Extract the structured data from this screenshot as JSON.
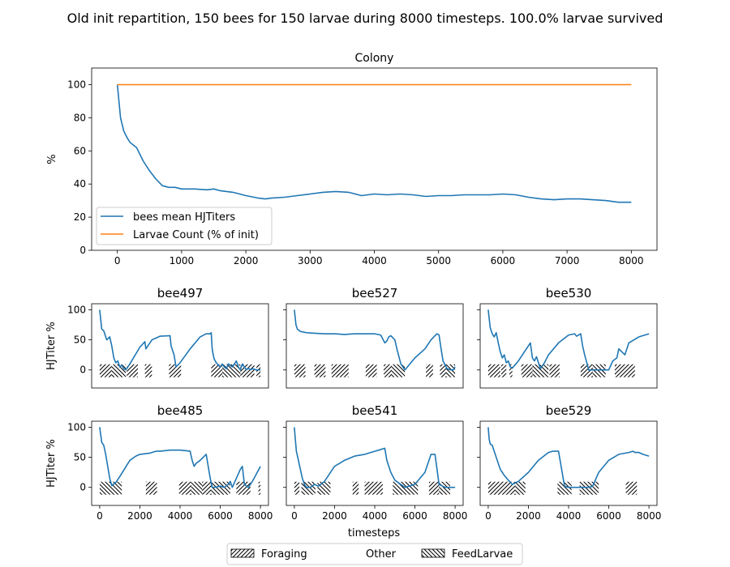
{
  "figure": {
    "suptitle": "Old init repartition, 150 bees for 150 larvae during 8000 timesteps. 100.0% larvae survived",
    "shared_xlabel": "timesteps",
    "legend": [
      {
        "label": "Foraging",
        "hatch": "forward"
      },
      {
        "label": "Other",
        "hatch": "none"
      },
      {
        "label": "FeedLarvae",
        "hatch": "backward"
      }
    ]
  },
  "colors": {
    "blue": "#1f77b4",
    "orange": "#ff7f0e"
  },
  "chart_data": [
    {
      "type": "line",
      "title": "Colony",
      "ylabel": "%",
      "xlabel": "",
      "xlim": [
        -400,
        8400
      ],
      "ylim": [
        0,
        110
      ],
      "xticks": [
        0,
        1000,
        2000,
        3000,
        4000,
        5000,
        6000,
        7000,
        8000
      ],
      "yticks": [
        0,
        20,
        40,
        60,
        80,
        100
      ],
      "legend_position": "lower-left",
      "series": [
        {
          "name": "bees mean HJTiters",
          "color": "#1f77b4",
          "x": [
            0,
            50,
            100,
            150,
            200,
            300,
            400,
            500,
            600,
            700,
            800,
            900,
            1000,
            1200,
            1400,
            1500,
            1600,
            1800,
            2000,
            2200,
            2300,
            2400,
            2600,
            2800,
            3000,
            3200,
            3400,
            3600,
            3800,
            4000,
            4200,
            4400,
            4600,
            4800,
            5000,
            5200,
            5400,
            5600,
            5800,
            6000,
            6200,
            6400,
            6600,
            6800,
            7000,
            7200,
            7400,
            7600,
            7800,
            8000
          ],
          "y": [
            100,
            80,
            72,
            68,
            65,
            62,
            54,
            48,
            43,
            39,
            38,
            38,
            37,
            37,
            36.5,
            37,
            36,
            35,
            33,
            31.5,
            31,
            31.5,
            32,
            33,
            34,
            35,
            35.5,
            35,
            33,
            34,
            33.5,
            34,
            33.5,
            32.5,
            33,
            33,
            33.5,
            33.5,
            33.5,
            34,
            33.5,
            32,
            31,
            30.5,
            31,
            31,
            30.5,
            30,
            29,
            29
          ]
        },
        {
          "name": "Larvae Count (% of init)",
          "color": "#ff7f0e",
          "x": [
            0,
            8000
          ],
          "y": [
            100,
            100
          ]
        }
      ]
    },
    {
      "type": "line",
      "title": "bee497",
      "ylabel": "HJTiter %",
      "xlim": [
        -400,
        8400
      ],
      "ylim": [
        -30,
        110
      ],
      "yticks": [
        0,
        50,
        100
      ],
      "x": [
        0,
        100,
        200,
        350,
        500,
        600,
        700,
        800,
        900,
        1000,
        1100,
        1200,
        1300,
        1500,
        2000,
        2250,
        2300,
        2600,
        3000,
        3500,
        3550,
        3700,
        3800,
        4000,
        4500,
        5000,
        5300,
        5500,
        5550,
        5600,
        5650,
        5700,
        5800,
        5900,
        6000,
        6100,
        6200,
        6300,
        6400,
        6600,
        6800,
        6900,
        7000,
        7100,
        7200,
        7300,
        7400,
        7500,
        7600,
        7800,
        8000
      ],
      "y": [
        100,
        68,
        65,
        50,
        55,
        40,
        20,
        12,
        15,
        5,
        8,
        2,
        0,
        10,
        38,
        47,
        35,
        50,
        56,
        57,
        40,
        25,
        5,
        12,
        35,
        55,
        60,
        60,
        62,
        35,
        25,
        18,
        12,
        8,
        5,
        10,
        5,
        2,
        10,
        5,
        15,
        5,
        0,
        10,
        5,
        0,
        3,
        0,
        2,
        0,
        0
      ],
      "activities": [
        {
          "kind": "forward",
          "start": 0,
          "end": 600
        },
        {
          "kind": "backward",
          "start": 600,
          "end": 1300
        },
        {
          "kind": "forward",
          "start": 1350,
          "end": 1900
        },
        {
          "kind": "forward",
          "start": 2250,
          "end": 2600
        },
        {
          "kind": "forward",
          "start": 3450,
          "end": 4050
        },
        {
          "kind": "forward",
          "start": 5550,
          "end": 6100
        },
        {
          "kind": "backward",
          "start": 6100,
          "end": 7000
        },
        {
          "kind": "forward",
          "start": 7000,
          "end": 7700
        },
        {
          "kind": "forward",
          "start": 7800,
          "end": 8000
        }
      ]
    },
    {
      "type": "line",
      "title": "bee527",
      "ylabel": "",
      "xlim": [
        -400,
        8400
      ],
      "ylim": [
        -30,
        110
      ],
      "yticks": [
        0,
        50,
        100
      ],
      "x": [
        0,
        80,
        150,
        300,
        600,
        1000,
        1500,
        2000,
        2500,
        3000,
        3500,
        4000,
        4300,
        4500,
        4600,
        4700,
        4800,
        5000,
        5100,
        5300,
        5500,
        6000,
        6500,
        6800,
        7000,
        7100,
        7200,
        7300,
        7400,
        7600,
        7800,
        7900,
        8000
      ],
      "y": [
        100,
        75,
        68,
        64,
        62,
        61,
        60,
        60,
        59,
        60,
        60,
        60,
        58,
        45,
        48,
        55,
        57,
        50,
        35,
        10,
        0,
        20,
        35,
        50,
        57,
        60,
        58,
        35,
        15,
        2,
        0,
        0,
        5
      ],
      "activities": [
        {
          "kind": "forward",
          "start": 0,
          "end": 550
        },
        {
          "kind": "forward",
          "start": 1000,
          "end": 1550
        },
        {
          "kind": "forward",
          "start": 1850,
          "end": 2700
        },
        {
          "kind": "forward",
          "start": 3550,
          "end": 4100
        },
        {
          "kind": "forward",
          "start": 4450,
          "end": 4850
        },
        {
          "kind": "backward",
          "start": 4850,
          "end": 5500
        },
        {
          "kind": "forward",
          "start": 6550,
          "end": 6900
        },
        {
          "kind": "forward",
          "start": 7250,
          "end": 7550
        },
        {
          "kind": "backward",
          "start": 7550,
          "end": 8000
        }
      ]
    },
    {
      "type": "line",
      "title": "bee530",
      "ylabel": "",
      "xlim": [
        -400,
        8400
      ],
      "ylim": [
        -30,
        110
      ],
      "yticks": [
        0,
        50,
        100
      ],
      "x": [
        0,
        100,
        200,
        300,
        400,
        500,
        600,
        700,
        800,
        900,
        1000,
        1100,
        1200,
        1500,
        1800,
        2100,
        2200,
        2300,
        2400,
        2500,
        2600,
        2800,
        3000,
        3500,
        4000,
        4300,
        4400,
        4500,
        4600,
        4700,
        4800,
        5000,
        5200,
        5500,
        6000,
        6200,
        6400,
        6500,
        6800,
        7000,
        7500,
        8000
      ],
      "y": [
        100,
        70,
        60,
        55,
        62,
        45,
        30,
        20,
        25,
        12,
        15,
        5,
        3,
        15,
        30,
        45,
        20,
        15,
        22,
        12,
        2,
        12,
        25,
        45,
        58,
        60,
        56,
        58,
        60,
        40,
        25,
        0,
        0,
        0,
        0,
        15,
        20,
        35,
        25,
        45,
        55,
        60
      ],
      "activities": [
        {
          "kind": "forward",
          "start": 0,
          "end": 600
        },
        {
          "kind": "forward",
          "start": 650,
          "end": 900
        },
        {
          "kind": "forward",
          "start": 1050,
          "end": 1200
        },
        {
          "kind": "forward",
          "start": 1650,
          "end": 2200
        },
        {
          "kind": "backward",
          "start": 2200,
          "end": 3000
        },
        {
          "kind": "forward",
          "start": 3050,
          "end": 3550
        },
        {
          "kind": "forward",
          "start": 4600,
          "end": 5200
        },
        {
          "kind": "backward",
          "start": 5200,
          "end": 5850
        },
        {
          "kind": "forward",
          "start": 6300,
          "end": 7300
        }
      ]
    },
    {
      "type": "line",
      "title": "bee485",
      "ylabel": "HJTiter %",
      "xlim": [
        -400,
        8400
      ],
      "ylim": [
        -30,
        110
      ],
      "yticks": [
        0,
        50,
        100
      ],
      "x": [
        0,
        100,
        200,
        300,
        400,
        500,
        600,
        800,
        1000,
        1500,
        1800,
        2000,
        2500,
        2800,
        3000,
        3500,
        4000,
        4300,
        4500,
        4600,
        4700,
        4800,
        5000,
        5300,
        5500,
        5600,
        5700,
        6000,
        6200,
        6400,
        6500,
        6600,
        6800,
        7000,
        7100,
        7200,
        7300,
        7400,
        7600,
        8000
      ],
      "y": [
        100,
        75,
        70,
        55,
        35,
        15,
        3,
        8,
        18,
        45,
        52,
        55,
        57,
        60,
        60,
        62,
        62,
        61,
        60,
        45,
        35,
        40,
        45,
        55,
        15,
        0,
        0,
        2,
        0,
        5,
        10,
        0,
        15,
        30,
        35,
        5,
        2,
        0,
        10,
        35
      ],
      "activities": [
        {
          "kind": "backward",
          "start": 0,
          "end": 1100
        },
        {
          "kind": "forward",
          "start": 2300,
          "end": 2850
        },
        {
          "kind": "forward",
          "start": 3950,
          "end": 4550
        },
        {
          "kind": "backward",
          "start": 4550,
          "end": 5100
        },
        {
          "kind": "forward",
          "start": 5100,
          "end": 5550
        },
        {
          "kind": "backward",
          "start": 5550,
          "end": 6500
        },
        {
          "kind": "forward",
          "start": 6800,
          "end": 7500
        },
        {
          "kind": "forward",
          "start": 7900,
          "end": 8000
        }
      ]
    },
    {
      "type": "line",
      "title": "bee541",
      "ylabel": "",
      "xlim": [
        -400,
        8400
      ],
      "ylim": [
        -30,
        110
      ],
      "yticks": [
        0,
        50,
        100
      ],
      "x": [
        0,
        50,
        100,
        200,
        300,
        400,
        500,
        600,
        800,
        1000,
        1200,
        1500,
        1800,
        2000,
        2500,
        3000,
        3500,
        4000,
        4200,
        4500,
        4600,
        4800,
        5000,
        5500,
        6000,
        6500,
        6800,
        7000,
        7200,
        7500,
        8000
      ],
      "y": [
        100,
        80,
        60,
        45,
        30,
        15,
        5,
        0,
        0,
        5,
        2,
        10,
        25,
        35,
        45,
        52,
        55,
        60,
        62,
        65,
        45,
        25,
        12,
        0,
        5,
        25,
        55,
        55,
        5,
        0,
        0
      ],
      "activities": [
        {
          "kind": "forward",
          "start": 0,
          "end": 250
        },
        {
          "kind": "backward",
          "start": 350,
          "end": 1050
        },
        {
          "kind": "backward",
          "start": 1150,
          "end": 1800
        },
        {
          "kind": "forward",
          "start": 2900,
          "end": 3200
        },
        {
          "kind": "forward",
          "start": 3500,
          "end": 4400
        },
        {
          "kind": "backward",
          "start": 4900,
          "end": 6150
        },
        {
          "kind": "forward",
          "start": 6700,
          "end": 7200
        },
        {
          "kind": "backward",
          "start": 7200,
          "end": 7750
        }
      ]
    },
    {
      "type": "line",
      "title": "bee529",
      "ylabel": "",
      "xlim": [
        -400,
        8400
      ],
      "ylim": [
        -30,
        110
      ],
      "yticks": [
        0,
        50,
        100
      ],
      "x": [
        0,
        50,
        100,
        200,
        300,
        400,
        500,
        600,
        800,
        1000,
        1200,
        1500,
        2000,
        2500,
        3000,
        3200,
        3500,
        3800,
        4000,
        4500,
        5000,
        5200,
        5500,
        6000,
        6500,
        7000,
        7200,
        7300,
        7500,
        7700,
        8000
      ],
      "y": [
        100,
        80,
        72,
        70,
        60,
        50,
        40,
        30,
        20,
        12,
        5,
        10,
        25,
        45,
        58,
        60,
        60,
        2,
        0,
        0,
        0,
        2,
        25,
        45,
        55,
        58,
        60,
        58,
        58,
        55,
        52
      ],
      "activities": [
        {
          "kind": "forward",
          "start": 0,
          "end": 1350
        },
        {
          "kind": "backward",
          "start": 1350,
          "end": 1850
        },
        {
          "kind": "backward",
          "start": 3450,
          "end": 4150
        },
        {
          "kind": "backward",
          "start": 4550,
          "end": 5250
        },
        {
          "kind": "backward",
          "start": 5250,
          "end": 5500
        },
        {
          "kind": "forward",
          "start": 6850,
          "end": 7400
        }
      ]
    }
  ]
}
